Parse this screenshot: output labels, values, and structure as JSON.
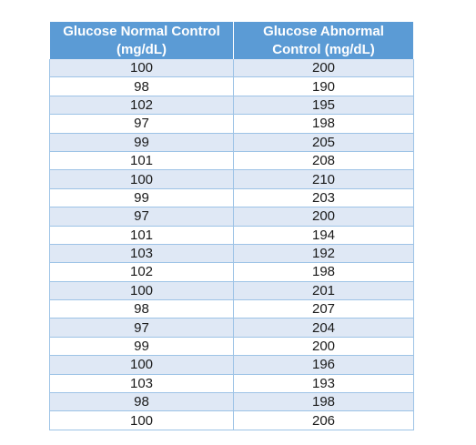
{
  "table": {
    "headers": [
      "Glucose Normal Control (mg/dL)",
      "Glucose Abnormal Control (mg/dL)"
    ],
    "rows": [
      [
        "100",
        "200"
      ],
      [
        "98",
        "190"
      ],
      [
        "102",
        "195"
      ],
      [
        "97",
        "198"
      ],
      [
        "99",
        "205"
      ],
      [
        "101",
        "208"
      ],
      [
        "100",
        "210"
      ],
      [
        "99",
        "203"
      ],
      [
        "97",
        "200"
      ],
      [
        "101",
        "194"
      ],
      [
        "103",
        "192"
      ],
      [
        "102",
        "198"
      ],
      [
        "100",
        "201"
      ],
      [
        "98",
        "207"
      ],
      [
        "97",
        "204"
      ],
      [
        "99",
        "200"
      ],
      [
        "100",
        "196"
      ],
      [
        "103",
        "193"
      ],
      [
        "98",
        "198"
      ],
      [
        "100",
        "206"
      ]
    ]
  },
  "colors": {
    "header_bg": "#5b9bd5",
    "stripe_bg": "#dfe8f5"
  }
}
